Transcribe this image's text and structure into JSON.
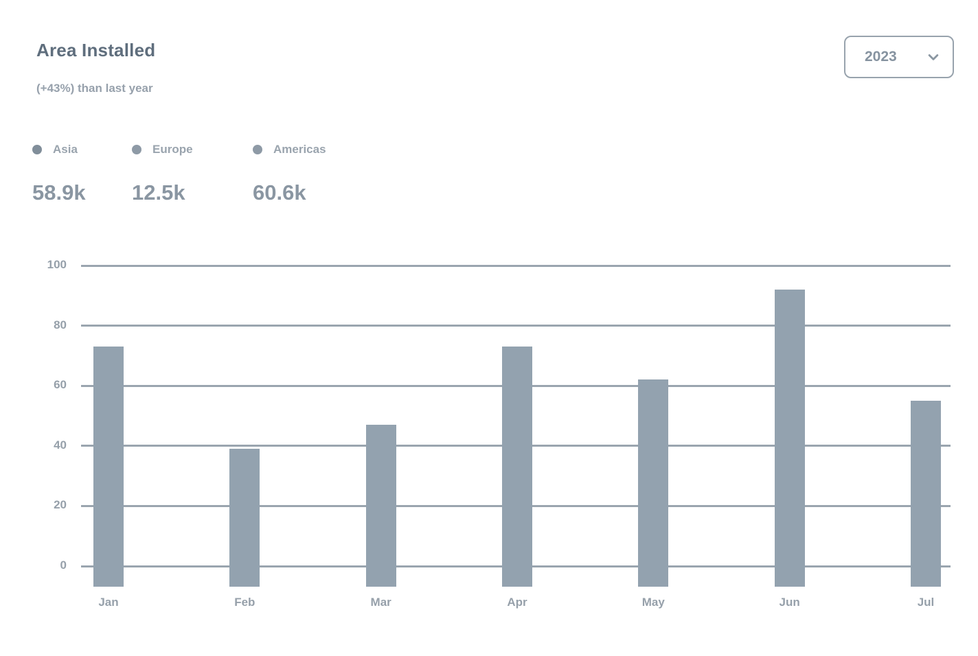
{
  "header": {
    "title": "Area Installed",
    "subtitle": "(+43%) than last year"
  },
  "year_select": {
    "value": "2023"
  },
  "legend": [
    {
      "label": "Asia",
      "value": "58.9k"
    },
    {
      "label": "Europe",
      "value": "12.5k"
    },
    {
      "label": "Americas",
      "value": "60.6k"
    }
  ],
  "colors": {
    "bar": "#93A2AF",
    "gridline": "#9AA5AF",
    "title_text": "#5F6E7D",
    "muted_text": "#97A1AC",
    "axis_text": "#96A0AA"
  },
  "chart_data": {
    "type": "bar",
    "title": "Area Installed",
    "categories": [
      "Jan",
      "Feb",
      "Mar",
      "Apr",
      "May",
      "Jun",
      "Jul"
    ],
    "values": [
      73,
      39,
      47,
      73,
      62,
      92,
      55
    ],
    "xlabel": "",
    "ylabel": "",
    "ylim": [
      0,
      100
    ],
    "yticks": [
      0,
      20,
      40,
      60,
      80,
      100
    ],
    "grid": "horizontal",
    "legend_position": "top-left"
  }
}
